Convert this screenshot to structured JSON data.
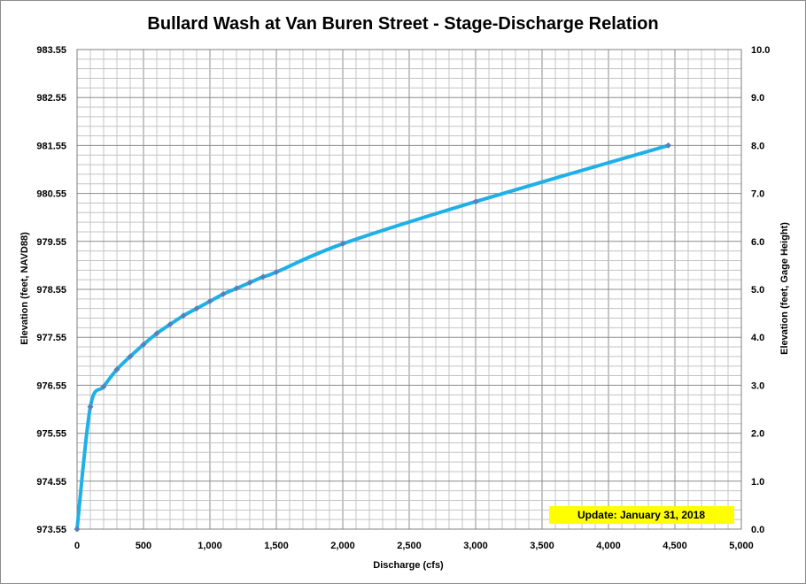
{
  "chart_data": {
    "type": "line",
    "title": "Bullard Wash at Van Buren Street - Stage-Discharge Relation",
    "xlabel": "Discharge  (cfs)",
    "ylabel_left": "Elevation  (feet, NAVD88)",
    "ylabel_right": "Elevation  (feet, Gage Height)",
    "xlim": [
      0,
      5000
    ],
    "ylim_left": [
      973.55,
      983.55
    ],
    "ylim_right": [
      0.0,
      10.0
    ],
    "x_ticks": [
      "0",
      "500",
      "1,000",
      "1,500",
      "2,000",
      "2,500",
      "3,000",
      "3,500",
      "4,000",
      "4,500",
      "5,000"
    ],
    "y_left_ticks": [
      "973.55",
      "974.55",
      "975.55",
      "976.55",
      "977.55",
      "978.55",
      "979.55",
      "980.55",
      "981.55",
      "982.55",
      "983.55"
    ],
    "y_right_ticks": [
      "0.0",
      "1.0",
      "2.0",
      "3.0",
      "4.0",
      "5.0",
      "6.0",
      "7.0",
      "8.0",
      "9.0",
      "10.0"
    ],
    "grid": true,
    "line_color": "#1fb0e8",
    "marker_color": "#5a7fb5",
    "annotation": "Update: January 31, 2018",
    "annotation_bg": "#ffff00",
    "series": [
      {
        "x": [
          0,
          100,
          200,
          300,
          400,
          500,
          600,
          700,
          800,
          900,
          1000,
          1100,
          1200,
          1300,
          1400,
          1500,
          2000,
          3000,
          4450
        ],
        "y": [
          0.0,
          2.55,
          2.97,
          3.33,
          3.6,
          3.85,
          4.08,
          4.27,
          4.45,
          4.6,
          4.75,
          4.9,
          5.02,
          5.14,
          5.26,
          5.36,
          5.95,
          6.83,
          8.0
        ]
      }
    ]
  }
}
